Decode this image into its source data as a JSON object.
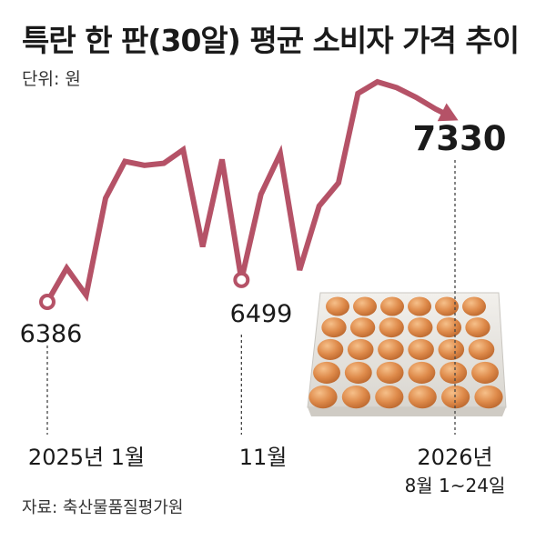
{
  "title": "특란 한 판(30알) 평균 소비자 가격 추이",
  "unit": "단위: 원",
  "source": "자료: 축산물품질평가원",
  "chart_data": {
    "type": "line",
    "title": "특란 한 판(30알) 평균 소비자 가격 추이",
    "unit": "원",
    "x": [
      "2025년 1월",
      "",
      "",
      "",
      "",
      "",
      "",
      "",
      "",
      "",
      "11월",
      "",
      "",
      "",
      "",
      "",
      "",
      "",
      "",
      "",
      "",
      "2026년 8월 1~24일"
    ],
    "x_tick_labels": [
      "2025년 1월",
      "11월",
      "2026년",
      "8월 1~24일"
    ],
    "values": [
      6386,
      6560,
      6420,
      6920,
      7110,
      7090,
      7100,
      7170,
      6670,
      7120,
      6499,
      6940,
      7150,
      6550,
      6880,
      7000,
      7460,
      7520,
      7490,
      7440,
      7380,
      7330
    ],
    "labeled_points": [
      {
        "index": 0,
        "value": "6386"
      },
      {
        "index": 10,
        "value": "6499"
      },
      {
        "index": 21,
        "value": "7330"
      }
    ],
    "ylim": [
      6000,
      7600
    ],
    "line_color": "#b55267",
    "highlight_color": "#b04a62",
    "grid": false,
    "legend": "none"
  }
}
